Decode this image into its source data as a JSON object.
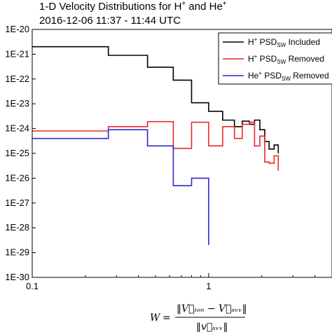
{
  "chart_data": {
    "type": "line",
    "title_line1_main": "1-D Velocity Distributions for H",
    "title_line1_sup1": "+",
    "title_line1_mid": " and He",
    "title_line1_sup2": "+",
    "title_line2": "2016-12-06 11:37 - 11:44 UTC",
    "xlabel": "W = ||V_ion − V_SW|| / ||v_SW||",
    "xlim": [
      0.1,
      5.0
    ],
    "ylim": [
      1e-30,
      1e-20
    ],
    "xscale": "log",
    "yscale": "log",
    "xtick_labels": [
      {
        "x": 0.1,
        "label": "0.1"
      },
      {
        "x": 1,
        "label": "1"
      }
    ],
    "ytick_labels": [
      {
        "y": 1e-20,
        "label": "1E-20"
      },
      {
        "y": 1e-21,
        "label": "1E-21"
      },
      {
        "y": 1e-22,
        "label": "1E-22"
      },
      {
        "y": 1e-23,
        "label": "1E-23"
      },
      {
        "y": 1e-24,
        "label": "1E-24"
      },
      {
        "y": 1e-25,
        "label": "1E-25"
      },
      {
        "y": 1e-26,
        "label": "1E-26"
      },
      {
        "y": 1e-27,
        "label": "1E-27"
      },
      {
        "y": 1e-28,
        "label": "1E-28"
      },
      {
        "y": 1e-29,
        "label": "1E-29"
      },
      {
        "y": 1e-30,
        "label": "1E-30"
      }
    ],
    "legend_placement": "top-right",
    "series": [
      {
        "name": "H+ PSD_SW Included",
        "legend_sup": "+",
        "legend_pre": "H",
        "legend_mid": " PSD",
        "legend_sub": "SW",
        "legend_post": " Included",
        "color": "#000000",
        "x": [
          0.1,
          0.27,
          0.27,
          0.45,
          0.45,
          0.63,
          0.63,
          0.8,
          0.8,
          1.0,
          1.0,
          1.2,
          1.2,
          1.4,
          1.4,
          1.55,
          1.55,
          1.7,
          1.7,
          1.82,
          1.82,
          1.95,
          1.95,
          2.08,
          2.08,
          2.2,
          2.2,
          2.35,
          2.35,
          2.48,
          2.48
        ],
        "y": [
          2e-21,
          2e-21,
          9e-22,
          9e-22,
          3e-22,
          3e-22,
          9e-23,
          9e-23,
          1.1e-23,
          1.1e-23,
          5e-24,
          5e-24,
          2.2e-24,
          2.2e-24,
          1.2e-24,
          1.2e-24,
          2e-24,
          2e-24,
          1.5e-24,
          1.5e-24,
          2.2e-24,
          2.2e-24,
          9e-25,
          9e-25,
          3e-25,
          3e-25,
          1.5e-25,
          1.5e-25,
          2.2e-25,
          2.2e-25,
          1e-25
        ]
      },
      {
        "name": "H+ PSD_SW Removed",
        "legend_pre": "H",
        "legend_sup": "+",
        "legend_mid": " PSD",
        "legend_sub": "SW",
        "legend_post": " Removed",
        "color": "#e8282a",
        "x": [
          0.1,
          0.27,
          0.27,
          0.45,
          0.45,
          0.63,
          0.63,
          0.8,
          0.8,
          1.0,
          1.0,
          1.2,
          1.2,
          1.4,
          1.4,
          1.55,
          1.55,
          1.7,
          1.7,
          1.82,
          1.82,
          1.95,
          1.95,
          2.08,
          2.08,
          2.2,
          2.2,
          2.35,
          2.35,
          2.48,
          2.48
        ],
        "y": [
          8e-25,
          8e-25,
          1.2e-24,
          1.2e-24,
          1.9e-24,
          1.9e-24,
          1.6e-25,
          1.6e-25,
          1.8e-24,
          1.8e-24,
          2e-25,
          2e-25,
          1.2e-24,
          1.2e-24,
          4e-25,
          4e-25,
          1.5e-24,
          1.5e-24,
          1.8e-24,
          1.8e-24,
          2e-25,
          2e-25,
          5e-25,
          5e-25,
          4.5e-26,
          4.5e-26,
          4e-26,
          4e-26,
          8e-26,
          8e-26,
          2e-26
        ]
      },
      {
        "name": "He+ PSD_SW Removed",
        "legend_pre": "He",
        "legend_sup": "+",
        "legend_mid": " PSD",
        "legend_sub": "SW",
        "legend_post": " Removed",
        "color": "#2a2acc",
        "x": [
          0.1,
          0.27,
          0.27,
          0.45,
          0.45,
          0.63,
          0.63,
          0.8,
          0.8,
          1.0,
          1.0
        ],
        "y": [
          4e-25,
          4e-25,
          9e-25,
          9e-25,
          2e-25,
          2e-25,
          5e-27,
          5e-27,
          1e-26,
          1e-26,
          2e-29
        ]
      }
    ]
  }
}
